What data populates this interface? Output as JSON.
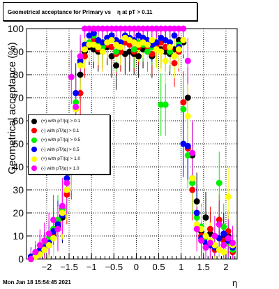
{
  "title": "Geometrical acceptance for Primary vs    η at pT > 0.11",
  "timestamp": "Mon Jan 18 15:54:45 2021",
  "chart_data": {
    "type": "scatter",
    "xlabel": "η",
    "ylabel": "Geometrical acceptance (%)",
    "xlim": [
      -2.45,
      2.25
    ],
    "ylim": [
      0,
      100
    ],
    "xticks": [
      -2,
      -1.5,
      -1,
      -0.5,
      0,
      0.5,
      1,
      1.5,
      2
    ],
    "xtick_labels": [
      "−2",
      "−1.5",
      "−1",
      "−0.5",
      "0",
      "0.5",
      "1",
      "1.5",
      "2"
    ],
    "yticks": [
      0,
      10,
      20,
      30,
      40,
      50,
      60,
      70,
      80,
      90,
      100
    ],
    "ytick_labels": [
      "0",
      "10",
      "20",
      "30",
      "40",
      "50",
      "60",
      "70",
      "80",
      "90",
      "100"
    ],
    "grid": true,
    "legend_position": "middle-left",
    "series": [
      {
        "name": "(+) with pT/|q| > 0.1",
        "color": "#000000",
        "x": [
          -2.35,
          -2.25,
          -2.15,
          -2.05,
          -1.95,
          -1.85,
          -1.75,
          -1.65,
          -1.55,
          -1.45,
          -1.35,
          -1.25,
          -1.15,
          -1.05,
          -0.95,
          -0.85,
          -0.75,
          -0.65,
          -0.55,
          -0.45,
          -0.35,
          -0.25,
          -0.15,
          -0.05,
          0.05,
          0.15,
          0.25,
          0.35,
          0.45,
          0.55,
          0.65,
          0.75,
          0.85,
          0.95,
          1.05,
          1.15,
          1.25,
          1.35,
          1.45,
          1.55,
          1.65,
          1.75,
          1.85,
          1.95,
          2.05,
          2.15
        ],
        "y": [
          1,
          1,
          2,
          4,
          6,
          10,
          14,
          18,
          30,
          45,
          65,
          80,
          90,
          92,
          91,
          90,
          91,
          92,
          88,
          84,
          90,
          89,
          90,
          89,
          88,
          91,
          90,
          88,
          92,
          91,
          90,
          89,
          91,
          95,
          94,
          70,
          45,
          25,
          12,
          18,
          11,
          6,
          15,
          9,
          10,
          5
        ]
      },
      {
        "name": "(-) with pT/|q| > 0.1",
        "color": "#ff0000",
        "x": [
          -2.35,
          -2.25,
          -2.15,
          -2.05,
          -1.95,
          -1.85,
          -1.75,
          -1.65,
          -1.55,
          -1.45,
          -1.35,
          -1.25,
          -1.15,
          -1.05,
          -0.95,
          -0.85,
          -0.75,
          -0.65,
          -0.55,
          -0.45,
          -0.35,
          -0.25,
          -0.15,
          -0.05,
          0.05,
          0.15,
          0.25,
          0.35,
          0.45,
          0.55,
          0.65,
          0.75,
          0.85,
          0.95,
          1.05,
          1.15,
          1.25,
          1.35,
          1.45,
          1.55,
          1.65,
          1.75,
          1.85,
          1.95,
          2.05,
          2.15
        ],
        "y": [
          0,
          2,
          3,
          5,
          8,
          11,
          16,
          22,
          28,
          40,
          55,
          72,
          88,
          93,
          95,
          91,
          90,
          93,
          92,
          89,
          90,
          94,
          93,
          90,
          92,
          96,
          92,
          89,
          93,
          94,
          92,
          91,
          85,
          90,
          68,
          48,
          30,
          20,
          10,
          5,
          13,
          4,
          17,
          8,
          12,
          3
        ]
      },
      {
        "name": "(+) with pT/|q| > 0.5",
        "color": "#00ee00",
        "x": [
          -2.35,
          -2.25,
          -2.15,
          -2.05,
          -1.95,
          -1.85,
          -1.75,
          -1.65,
          -1.55,
          -1.45,
          -1.35,
          -1.25,
          -1.15,
          -1.05,
          -0.95,
          -0.85,
          -0.75,
          -0.65,
          -0.55,
          -0.45,
          -0.35,
          -0.25,
          -0.15,
          -0.05,
          0.05,
          0.15,
          0.25,
          0.35,
          0.45,
          0.55,
          0.65,
          0.75,
          0.85,
          0.95,
          1.05,
          1.15,
          1.25,
          1.35,
          1.45,
          1.55,
          1.65,
          1.75,
          1.85,
          1.95,
          2.05,
          2.15
        ],
        "y": [
          0,
          1,
          3,
          6,
          9,
          13,
          17,
          21,
          35,
          48,
          68,
          85,
          92,
          94,
          97,
          93,
          92,
          94,
          95,
          90,
          93,
          96,
          95,
          91,
          94,
          93,
          90,
          92,
          91,
          67,
          67,
          90,
          88,
          93,
          65,
          45,
          33,
          18,
          14,
          8,
          6,
          10,
          33,
          14,
          7,
          4
        ]
      },
      {
        "name": "(-) with pT/|q| > 0.5",
        "color": "#0000ff",
        "x": [
          -2.35,
          -2.25,
          -2.15,
          -2.05,
          -1.95,
          -1.85,
          -1.75,
          -1.65,
          -1.55,
          -1.45,
          -1.35,
          -1.25,
          -1.15,
          -1.05,
          -0.95,
          -0.85,
          -0.75,
          -0.65,
          -0.55,
          -0.45,
          -0.35,
          -0.25,
          -0.15,
          -0.05,
          0.05,
          0.15,
          0.25,
          0.35,
          0.45,
          0.55,
          0.65,
          0.75,
          0.85,
          0.95,
          1.05,
          1.15,
          1.25,
          1.35,
          1.45,
          1.55,
          1.65,
          1.75,
          1.85,
          1.95,
          2.05,
          2.15
        ],
        "y": [
          1,
          2,
          4,
          5,
          7,
          12,
          15,
          19,
          35,
          47,
          72,
          86,
          93,
          97,
          98,
          95,
          94,
          96,
          97,
          95,
          94,
          97,
          96,
          95,
          97,
          96,
          95,
          93,
          94,
          96,
          95,
          94,
          97,
          92,
          50,
          49,
          35,
          20,
          9,
          7,
          6,
          5,
          9,
          11,
          8,
          5
        ]
      },
      {
        "name": "(+) with pT/|q| > 1.0",
        "color": "#ffff00",
        "x": [
          -2.35,
          -2.25,
          -2.15,
          -2.05,
          -1.95,
          -1.85,
          -1.75,
          -1.65,
          -1.55,
          -1.45,
          -1.35,
          -1.25,
          -1.15,
          -1.05,
          -0.95,
          -0.85,
          -0.75,
          -0.65,
          -0.55,
          -0.45,
          -0.35,
          -0.25,
          -0.15,
          -0.05,
          0.05,
          0.15,
          0.25,
          0.35,
          0.45,
          0.55,
          0.65,
          0.75,
          0.85,
          0.95,
          1.05,
          1.15,
          1.25,
          1.35,
          1.45,
          1.55,
          1.65,
          1.75,
          1.85,
          1.95,
          2.05,
          2.15
        ],
        "y": [
          0,
          1,
          2,
          4,
          6,
          9,
          13,
          20,
          30,
          44,
          65,
          84,
          91,
          93,
          93,
          92,
          90,
          94,
          95,
          93,
          92,
          96,
          95,
          94,
          93,
          94,
          93,
          95,
          91,
          90,
          86,
          92,
          88,
          91,
          95,
          62,
          35,
          15,
          13,
          10,
          8,
          6,
          4,
          3,
          27,
          6
        ]
      },
      {
        "name": "(-) with pT/|q| > 1.0",
        "color": "#ff00ff",
        "x": [
          -2.35,
          -2.25,
          -2.15,
          -2.05,
          -1.95,
          -1.85,
          -1.75,
          -1.65,
          -1.55,
          -1.45,
          -1.35,
          -1.25,
          -1.15,
          -1.05,
          -0.95,
          -0.85,
          -0.75,
          -0.65,
          -0.55,
          -0.45,
          -0.35,
          -0.25,
          -0.15,
          -0.05,
          0.05,
          0.15,
          0.25,
          0.35,
          0.45,
          0.55,
          0.65,
          0.75,
          0.85,
          0.95,
          1.05,
          1.15,
          1.25,
          1.35,
          1.45,
          1.55,
          1.65,
          1.75,
          1.85,
          1.95,
          2.05,
          2.15
        ],
        "y": [
          0,
          3,
          6,
          8,
          11,
          17,
          13,
          23,
          33,
          79,
          66,
          88,
          100,
          100,
          100,
          100,
          100,
          100,
          100,
          100,
          100,
          100,
          100,
          100,
          100,
          100,
          100,
          100,
          100,
          100,
          100,
          100,
          100,
          100,
          100,
          86,
          46,
          13,
          8,
          5,
          7,
          10,
          15,
          6,
          9,
          7
        ]
      }
    ]
  }
}
